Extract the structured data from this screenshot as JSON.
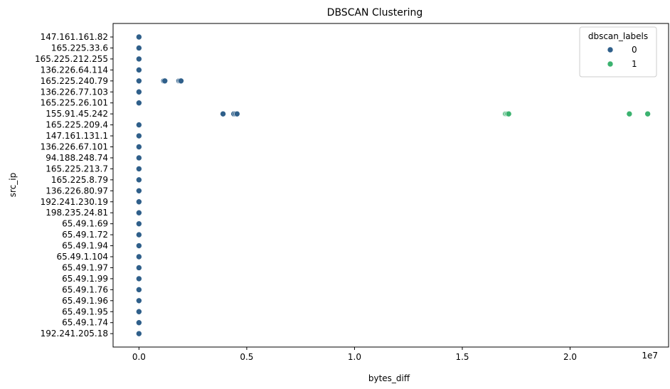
{
  "chart_data": {
    "type": "scatter",
    "title": "DBSCAN Clustering",
    "xlabel": "bytes_diff",
    "ylabel": "src_ip",
    "x_offset_label": "1e7",
    "xlim": [
      -1200000,
      24800000
    ],
    "x_ticks": [
      0,
      5000000,
      10000000,
      15000000,
      20000000
    ],
    "x_tick_labels": [
      "0.0",
      "0.5",
      "1.0",
      "1.5",
      "2.0"
    ],
    "categories": [
      "147.161.161.82",
      "165.225.33.6",
      "165.225.212.255",
      "136.226.64.114",
      "165.225.240.79",
      "136.226.77.103",
      "165.225.26.101",
      "155.91.45.242",
      "165.225.209.4",
      "147.161.131.1",
      "136.226.67.101",
      "94.188.248.74",
      "165.225.213.7",
      "165.225.8.79",
      "136.226.80.97",
      "192.241.230.19",
      "198.235.24.81",
      "65.49.1.69",
      "65.49.1.72",
      "65.49.1.94",
      "65.49.1.104",
      "65.49.1.97",
      "65.49.1.99",
      "65.49.1.76",
      "65.49.1.96",
      "65.49.1.95",
      "65.49.1.74",
      "192.241.205.18"
    ],
    "grid": false,
    "legend": {
      "title": "dbscan_labels",
      "placement": "top-right"
    },
    "series": [
      {
        "name": "0",
        "color": "#2f5f8a",
        "points": [
          {
            "x": 0,
            "y": "147.161.161.82"
          },
          {
            "x": 0,
            "y": "165.225.33.6"
          },
          {
            "x": 0,
            "y": "165.225.212.255"
          },
          {
            "x": 0,
            "y": "136.226.64.114"
          },
          {
            "x": 0,
            "y": "165.225.240.79"
          },
          {
            "x": 1150000,
            "y": "165.225.240.79"
          },
          {
            "x": 1200000,
            "y": "165.225.240.79"
          },
          {
            "x": 1850000,
            "y": "165.225.240.79"
          },
          {
            "x": 1900000,
            "y": "165.225.240.79"
          },
          {
            "x": 1950000,
            "y": "165.225.240.79"
          },
          {
            "x": 0,
            "y": "136.226.77.103"
          },
          {
            "x": 0,
            "y": "165.225.26.101"
          },
          {
            "x": 3900000,
            "y": "155.91.45.242"
          },
          {
            "x": 4400000,
            "y": "155.91.45.242"
          },
          {
            "x": 4480000,
            "y": "155.91.45.242"
          },
          {
            "x": 4550000,
            "y": "155.91.45.242"
          },
          {
            "x": 0,
            "y": "165.225.209.4"
          },
          {
            "x": 0,
            "y": "147.161.131.1"
          },
          {
            "x": 0,
            "y": "136.226.67.101"
          },
          {
            "x": 0,
            "y": "94.188.248.74"
          },
          {
            "x": 0,
            "y": "165.225.213.7"
          },
          {
            "x": 0,
            "y": "165.225.8.79"
          },
          {
            "x": 0,
            "y": "136.226.80.97"
          },
          {
            "x": 0,
            "y": "192.241.230.19"
          },
          {
            "x": 0,
            "y": "198.235.24.81"
          },
          {
            "x": 0,
            "y": "65.49.1.69"
          },
          {
            "x": 0,
            "y": "65.49.1.72"
          },
          {
            "x": 0,
            "y": "65.49.1.94"
          },
          {
            "x": 0,
            "y": "65.49.1.104"
          },
          {
            "x": 0,
            "y": "65.49.1.97"
          },
          {
            "x": 0,
            "y": "65.49.1.99"
          },
          {
            "x": 0,
            "y": "65.49.1.76"
          },
          {
            "x": 0,
            "y": "65.49.1.96"
          },
          {
            "x": 0,
            "y": "65.49.1.95"
          },
          {
            "x": 0,
            "y": "65.49.1.74"
          },
          {
            "x": 0,
            "y": "192.241.205.18"
          }
        ]
      },
      {
        "name": "1",
        "color": "#3bb26f",
        "points": [
          {
            "x": 17000000,
            "y": "155.91.45.242"
          },
          {
            "x": 17050000,
            "y": "155.91.45.242"
          },
          {
            "x": 17100000,
            "y": "155.91.45.242"
          },
          {
            "x": 17150000,
            "y": "155.91.45.242"
          },
          {
            "x": 22750000,
            "y": "155.91.45.242"
          },
          {
            "x": 23600000,
            "y": "155.91.45.242"
          }
        ]
      }
    ]
  }
}
